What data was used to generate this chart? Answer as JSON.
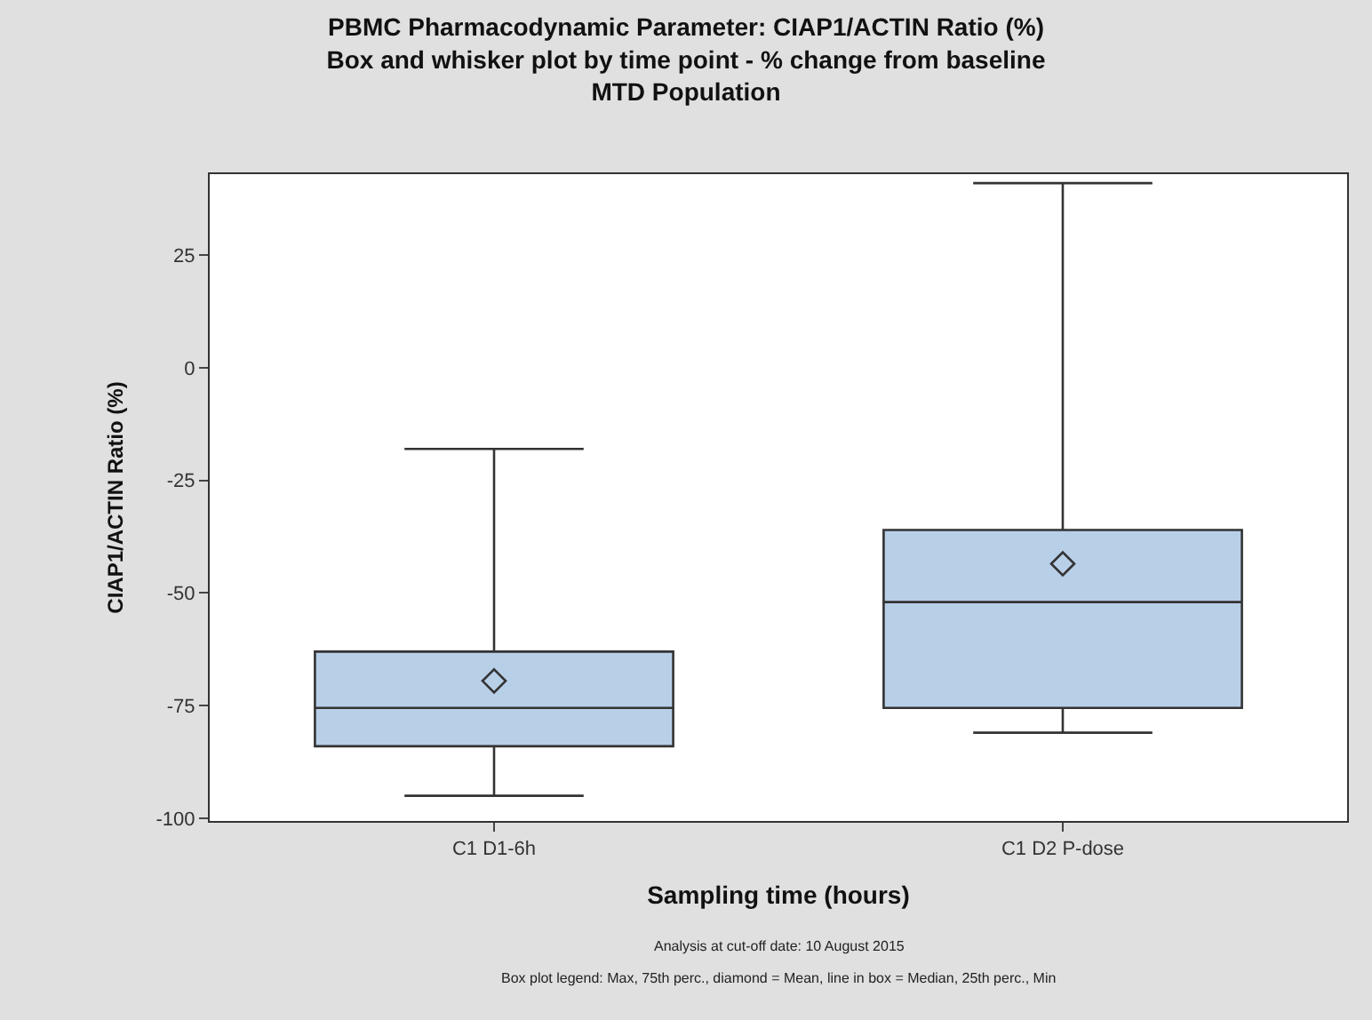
{
  "chart_data": {
    "type": "box",
    "title": "PBMC Pharmacodynamic Parameter: CIAP1/ACTIN Ratio (%)\nBox and whisker plot by time point - % change from baseline\nMTD Population",
    "xlabel": "Sampling time (hours)",
    "ylabel": "CIAP1/ACTIN Ratio (%)",
    "categories": [
      "C1 D1-6h",
      "C1 D2 P-dose"
    ],
    "boxes": [
      {
        "low": -95,
        "q1": -84,
        "median": -75.5,
        "q3": -63,
        "high": -18,
        "mean": -69.5
      },
      {
        "low": -81,
        "q1": -75.5,
        "median": -52,
        "q3": -36,
        "high": 41,
        "mean": -43.5
      }
    ],
    "color": "#b8cfe8",
    "ylim": [
      -100.6,
      43
    ],
    "yticks": [
      -100,
      -75,
      -50,
      -25,
      0,
      25
    ],
    "marker": "diamond",
    "annotations": [
      "Analysis at cut-off date: 10 August 2015",
      "Box plot legend: Max, 75th perc., diamond = Mean, line in box = Median, 25th perc., Min"
    ]
  }
}
